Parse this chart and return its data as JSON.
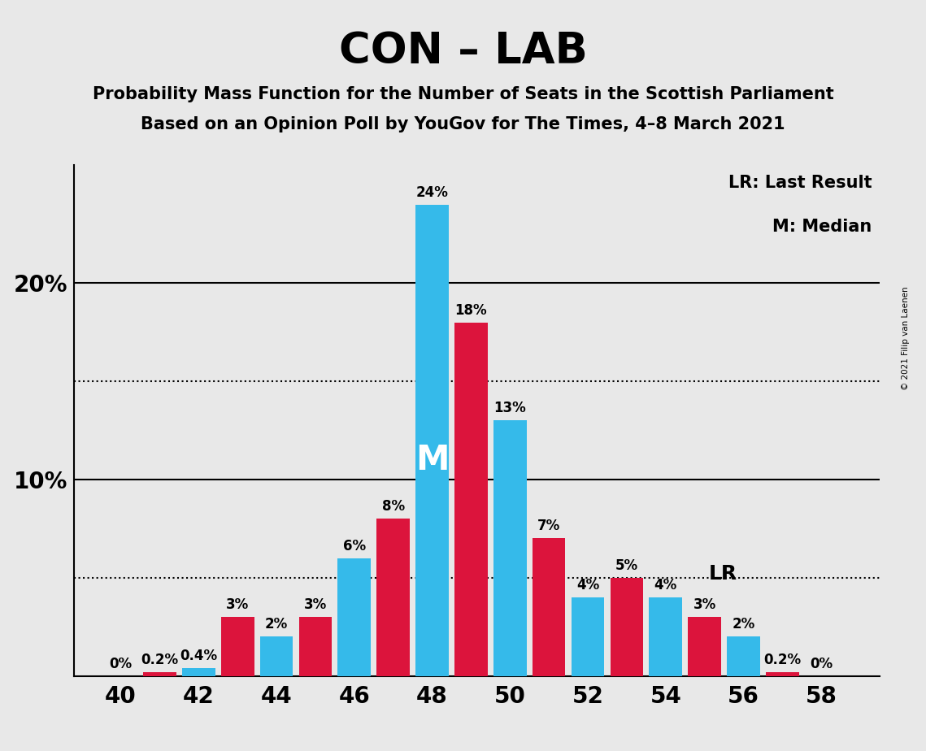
{
  "title": "CON – LAB",
  "subtitle1": "Probability Mass Function for the Number of Seats in the Scottish Parliament",
  "subtitle2": "Based on an Opinion Poll by YouGov for The Times, 4–8 March 2021",
  "copyright": "© 2021 Filip van Laenen",
  "seats": [
    40,
    41,
    42,
    43,
    44,
    45,
    46,
    47,
    48,
    49,
    50,
    51,
    52,
    53,
    54,
    55,
    56,
    57,
    58
  ],
  "blue_values": [
    0.0,
    0.0,
    0.4,
    0.0,
    2.0,
    0.0,
    6.0,
    0.0,
    24.0,
    0.0,
    13.0,
    0.0,
    4.0,
    0.0,
    4.0,
    0.0,
    2.0,
    0.0,
    0.0
  ],
  "red_values": [
    0.0,
    0.2,
    0.0,
    3.0,
    0.0,
    3.0,
    0.0,
    8.0,
    0.0,
    18.0,
    0.0,
    7.0,
    0.0,
    5.0,
    0.0,
    3.0,
    0.0,
    0.2,
    0.0
  ],
  "label_values": [
    0.0,
    0.2,
    0.4,
    3.0,
    2.0,
    3.0,
    6.0,
    8.0,
    24.0,
    18.0,
    13.0,
    7.0,
    4.0,
    5.0,
    4.0,
    3.0,
    2.0,
    0.2,
    0.0
  ],
  "blue_color": "#35BAEA",
  "red_color": "#DC143C",
  "bg_color": "#E8E8E8",
  "ylim": [
    0,
    26
  ],
  "median_seat": 48,
  "lr_seat": 54,
  "legend_text1": "LR: Last Result",
  "legend_text2": "M: Median",
  "bar_width": 0.85
}
